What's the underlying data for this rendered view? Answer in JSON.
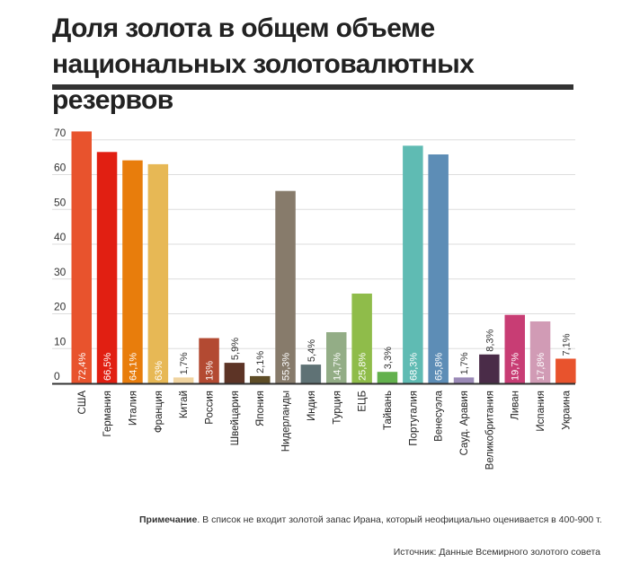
{
  "header": {
    "title_line1": "Доля золота в общем объеме",
    "title_line2": "национальных золотовалютных резервов"
  },
  "footer": {
    "note_label": "Примечание",
    "note_text": ". В список не входит золотой запас Ирана, который неофициально оценивается в 400-900 т.",
    "source": "Источник: Данные Всемирного золотого совета"
  },
  "chart_data": {
    "type": "bar",
    "title": "Доля золота в общем объеме национальных золотовалютных резервов",
    "xlabel": "",
    "ylabel": "",
    "ylim": [
      0,
      72
    ],
    "yticks": [
      0,
      10,
      20,
      30,
      40,
      50,
      60,
      70
    ],
    "grid": true,
    "categories": [
      "США",
      "Германия",
      "Италия",
      "Франция",
      "Китай",
      "Россия",
      "Швейцария",
      "Япония",
      "Нидерланды",
      "Индия",
      "Турция",
      "ЕЦБ",
      "Тайвань",
      "Португалия",
      "Венесуэла",
      "Сауд. Аравия",
      "Великобритания",
      "Ливан",
      "Испания",
      "Украина"
    ],
    "values": [
      72.4,
      66.5,
      64.1,
      63,
      1.7,
      13,
      5.9,
      2.1,
      55.3,
      5.4,
      14.7,
      25.8,
      3.3,
      68.3,
      65.8,
      1.7,
      8.3,
      19.7,
      17.8,
      7.1
    ],
    "value_labels": [
      "72,4%",
      "66,5%",
      "64,1%",
      "63%",
      "1,7%",
      "13%",
      "5,9%",
      "2,1%",
      "55,3%",
      "5,4%",
      "14,7%",
      "25,8%",
      "3,3%",
      "68,3%",
      "65,8%",
      "1,7%",
      "8,3%",
      "19,7%",
      "17,8%",
      "7,1%"
    ],
    "colors": [
      "#e8532d",
      "#e11f12",
      "#e87d0c",
      "#e7b855",
      "#f0d4a0",
      "#b34a32",
      "#5d3426",
      "#5e4d27",
      "#877b6b",
      "#5f7275",
      "#93ad86",
      "#8fbc4a",
      "#63b14d",
      "#5fbbb3",
      "#5d8db6",
      "#9b8ab7",
      "#4a2c48",
      "#c83d74",
      "#d19bb5",
      "#e8532d"
    ]
  }
}
